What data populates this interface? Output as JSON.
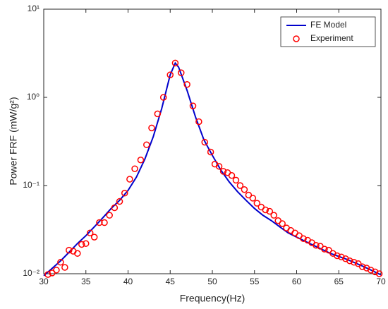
{
  "chart_data": {
    "type": "line",
    "xlabel": "Frequency(Hz)",
    "ylabel": "Power FRF (mW/g²)",
    "xlim": [
      30,
      70
    ],
    "xticks": [
      30,
      35,
      40,
      45,
      50,
      55,
      60,
      65,
      70
    ],
    "ylim": [
      0.01,
      10
    ],
    "yticks": [
      {
        "value": 0.01,
        "label": "10⁻²"
      },
      {
        "value": 0.1,
        "label": "10⁻¹"
      },
      {
        "value": 1,
        "label": "10⁰"
      },
      {
        "value": 10,
        "label": "10¹"
      }
    ],
    "log_y": true,
    "grid": false,
    "legend": "upper right",
    "series": [
      {
        "name": "FE Model",
        "type": "line",
        "color": "#0000cc",
        "x": [
          30,
          31,
          32,
          33,
          34,
          35,
          36,
          37,
          38,
          39,
          40,
          41,
          42,
          43,
          44,
          45,
          45.6,
          46,
          47,
          48,
          49,
          50,
          51,
          52,
          53,
          54,
          55,
          56,
          57,
          58,
          59,
          60,
          62,
          64,
          66,
          68,
          70
        ],
        "values": [
          0.0095,
          0.0115,
          0.014,
          0.0175,
          0.022,
          0.027,
          0.034,
          0.043,
          0.055,
          0.068,
          0.088,
          0.125,
          0.2,
          0.36,
          0.75,
          1.8,
          2.45,
          2.2,
          1.2,
          0.6,
          0.33,
          0.22,
          0.15,
          0.11,
          0.085,
          0.068,
          0.055,
          0.046,
          0.04,
          0.034,
          0.029,
          0.026,
          0.021,
          0.017,
          0.0145,
          0.012,
          0.0097
        ]
      },
      {
        "name": "Experiment",
        "type": "scatter",
        "color": "#ff0000",
        "x": [
          30.5,
          31,
          31.5,
          32,
          32.5,
          33,
          33.5,
          34,
          34.5,
          35,
          35.5,
          36,
          36.6,
          37.2,
          37.8,
          38.4,
          39,
          39.6,
          40.2,
          40.8,
          41.5,
          42.2,
          42.8,
          43.5,
          44.2,
          45,
          45.6,
          46.3,
          47,
          47.7,
          48.4,
          49.1,
          49.8,
          50.3,
          50.8,
          51.3,
          51.8,
          52.3,
          52.8,
          53.3,
          53.8,
          54.3,
          54.8,
          55.3,
          55.8,
          56.3,
          56.8,
          57.3,
          57.8,
          58.3,
          58.8,
          59.3,
          59.8,
          60.3,
          60.8,
          61.3,
          61.8,
          62.3,
          62.8,
          63.3,
          63.8,
          64.3,
          64.8,
          65.3,
          65.8,
          66.3,
          66.8,
          67.3,
          67.8,
          68.3,
          68.8,
          69.3,
          69.8
        ],
        "values": [
          0.0098,
          0.0102,
          0.011,
          0.0135,
          0.0118,
          0.0185,
          0.018,
          0.017,
          0.0215,
          0.022,
          0.029,
          0.026,
          0.038,
          0.038,
          0.046,
          0.056,
          0.066,
          0.082,
          0.118,
          0.155,
          0.195,
          0.29,
          0.45,
          0.65,
          1.0,
          1.8,
          2.45,
          1.9,
          1.4,
          0.8,
          0.53,
          0.31,
          0.24,
          0.175,
          0.165,
          0.145,
          0.14,
          0.13,
          0.115,
          0.1,
          0.09,
          0.078,
          0.072,
          0.063,
          0.057,
          0.053,
          0.051,
          0.046,
          0.04,
          0.037,
          0.033,
          0.031,
          0.029,
          0.027,
          0.025,
          0.024,
          0.0225,
          0.021,
          0.0205,
          0.019,
          0.0185,
          0.017,
          0.016,
          0.0155,
          0.0148,
          0.014,
          0.0135,
          0.013,
          0.012,
          0.0116,
          0.011,
          0.0105,
          0.01
        ]
      }
    ]
  }
}
